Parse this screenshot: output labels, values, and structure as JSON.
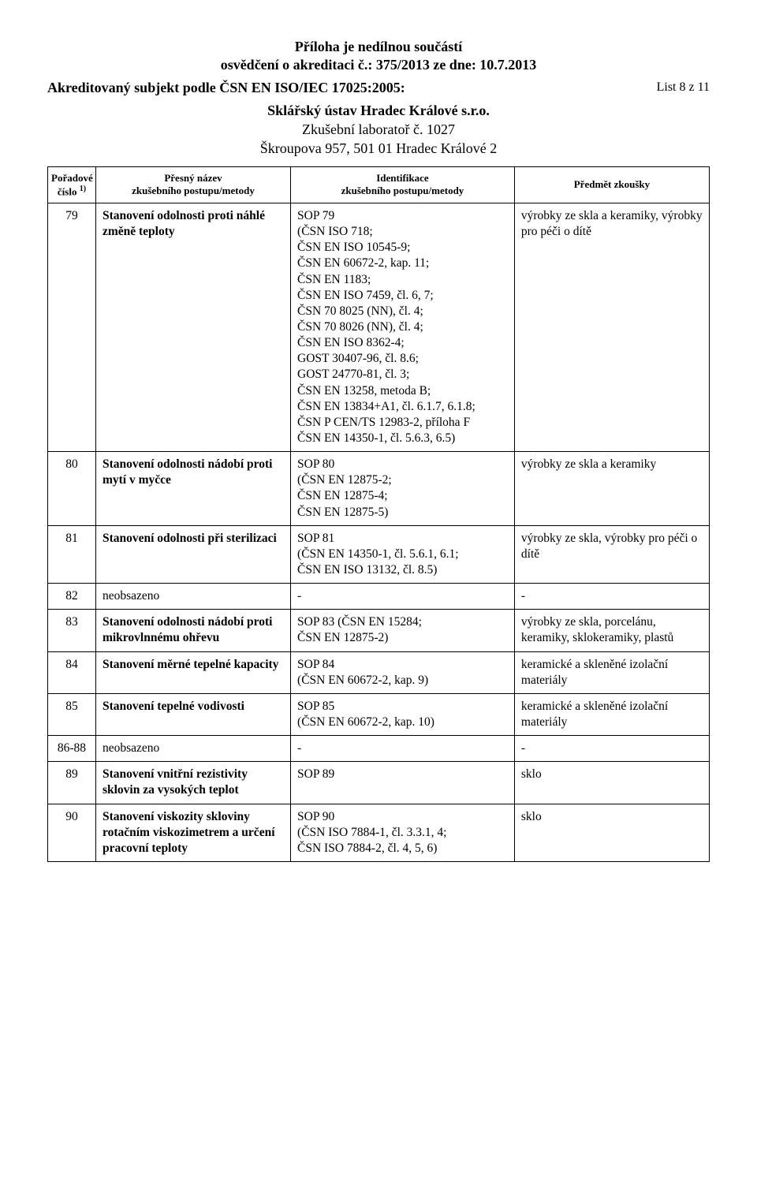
{
  "header": {
    "line1": "Příloha je nedílnou součástí",
    "line2": "osvědčení o akreditaci č.: 375/2013 ze dne: 10.7.2013",
    "left_heading": "Akreditovaný subjekt podle ČSN EN ISO/IEC 17025:2005:",
    "page_num": "List 8 z 11",
    "center1": "Sklářský ústav Hradec Králové s.r.o.",
    "center2": "Zkušební laboratoř č. 1027",
    "center3": "Škroupova 957, 501 01  Hradec Králové 2"
  },
  "columns": {
    "c1a": "Pořadové",
    "c1b": "číslo",
    "c1sup": "1)",
    "c2a": "Přesný název",
    "c2b": "zkušebního postupu/metody",
    "c3a": "Identifikace",
    "c3b": "zkušebního postupu/metody",
    "c4": "Předmět zkoušky"
  },
  "rows": [
    {
      "num": "79",
      "name": "Stanovení odolnosti proti náhlé změně teploty",
      "ident": "SOP 79\n(ČSN ISO 718;\nČSN EN ISO 10545-9;\nČSN EN 60672-2, kap. 11;\nČSN EN 1183;\nČSN EN ISO 7459, čl. 6, 7;\nČSN 70 8025 (NN), čl. 4;\nČSN 70 8026 (NN), čl. 4;\nČSN EN ISO 8362-4;\nGOST 30407-96, čl. 8.6;\nGOST 24770-81, čl. 3;\nČSN EN 13258, metoda B;\nČSN EN 13834+A1, čl. 6.1.7, 6.1.8;\nČSN P CEN/TS 12983-2, příloha F\nČSN EN 14350-1, čl. 5.6.3, 6.5)",
      "subject": "výrobky ze skla a keramiky, výrobky pro péči o dítě"
    },
    {
      "num": "80",
      "name": "Stanovení odolnosti nádobí proti mytí v myčce",
      "ident": "SOP 80\n(ČSN EN 12875-2;\nČSN EN 12875-4;\nČSN EN 12875-5)",
      "subject": "výrobky ze skla a keramiky"
    },
    {
      "num": "81",
      "name": "Stanovení odolnosti při sterilizaci",
      "ident": "SOP 81\n(ČSN EN 14350-1, čl. 5.6.1, 6.1;\nČSN EN ISO 13132, čl. 8.5)",
      "subject": "výrobky ze skla, výrobky pro péči o dítě"
    },
    {
      "num": "82",
      "name": "neobsazeno",
      "ident": "-",
      "subject": "-"
    },
    {
      "num": "83",
      "name": "Stanovení odolnosti nádobí proti mikrovlnnému ohřevu",
      "ident": "SOP 83 (ČSN EN 15284;\nČSN EN 12875-2)",
      "subject": "výrobky ze skla, porcelánu, keramiky, sklokeramiky, plastů"
    },
    {
      "num": "84",
      "name": "Stanovení měrné tepelné kapacity",
      "ident": "SOP 84\n(ČSN EN 60672-2, kap. 9)",
      "subject": "keramické a skleněné izolační materiály"
    },
    {
      "num": "85",
      "name": "Stanovení tepelné vodivosti",
      "ident": "SOP 85\n(ČSN EN 60672-2, kap. 10)",
      "subject": "keramické a skleněné izolační materiály"
    },
    {
      "num": "86-88",
      "name": "neobsazeno",
      "ident": "-",
      "subject": "-"
    },
    {
      "num": "89",
      "name": "Stanovení vnitřní rezistivity sklovin za vysokých teplot",
      "ident": "SOP 89",
      "subject": "sklo"
    },
    {
      "num": "90",
      "name": "Stanovení viskozity skloviny rotačním viskozimetrem a určení pracovní teploty",
      "ident": "SOP 90\n(ČSN ISO 7884-1, čl. 3.3.1, 4;\nČSN ISO 7884-2, čl. 4, 5, 6)",
      "subject": "sklo"
    }
  ]
}
